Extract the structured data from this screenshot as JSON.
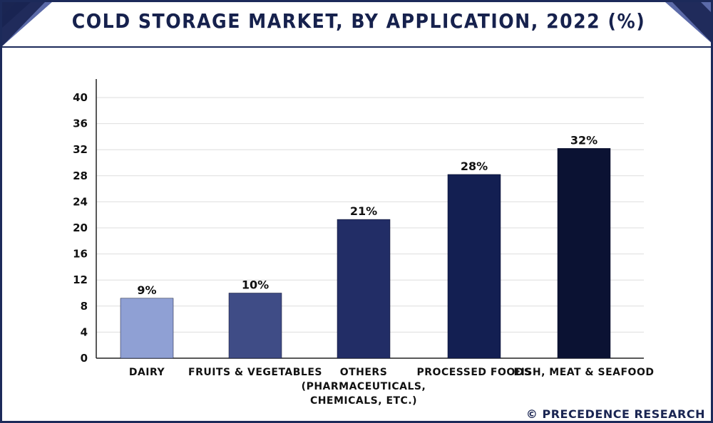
{
  "title": "COLD STORAGE MARKET, BY APPLICATION, 2022 (%)",
  "credit": "© PRECEDENCE RESEARCH",
  "colors": {
    "frame": "#1c2a5a",
    "corner_dark": "#1a2552",
    "corner_light": "#5b6aa8"
  },
  "chart_data": {
    "type": "bar",
    "categories": [
      [
        "DAIRY"
      ],
      [
        "FRUITS & VEGETABLES"
      ],
      [
        "OTHERS",
        "(PHARMACEUTICALS,",
        "CHEMICALS, ETC.)"
      ],
      [
        "PROCESSED FOODS"
      ],
      [
        "FISH, MEAT & SEAFOOD"
      ]
    ],
    "values": [
      9.2,
      10,
      21.3,
      28.2,
      32.2
    ],
    "data_labels": [
      "9%",
      "10%",
      "21%",
      "28%",
      "32%"
    ],
    "bar_colors": [
      "#8fa0d4",
      "#3f4c86",
      "#222d66",
      "#131f52",
      "#0b1233"
    ],
    "yticks": [
      0,
      4,
      8,
      12,
      16,
      20,
      24,
      28,
      32,
      36,
      40
    ],
    "ylim": [
      0,
      40
    ],
    "grid": true,
    "title": "COLD STORAGE MARKET, BY APPLICATION, 2022 (%)",
    "xlabel": "",
    "ylabel": ""
  }
}
